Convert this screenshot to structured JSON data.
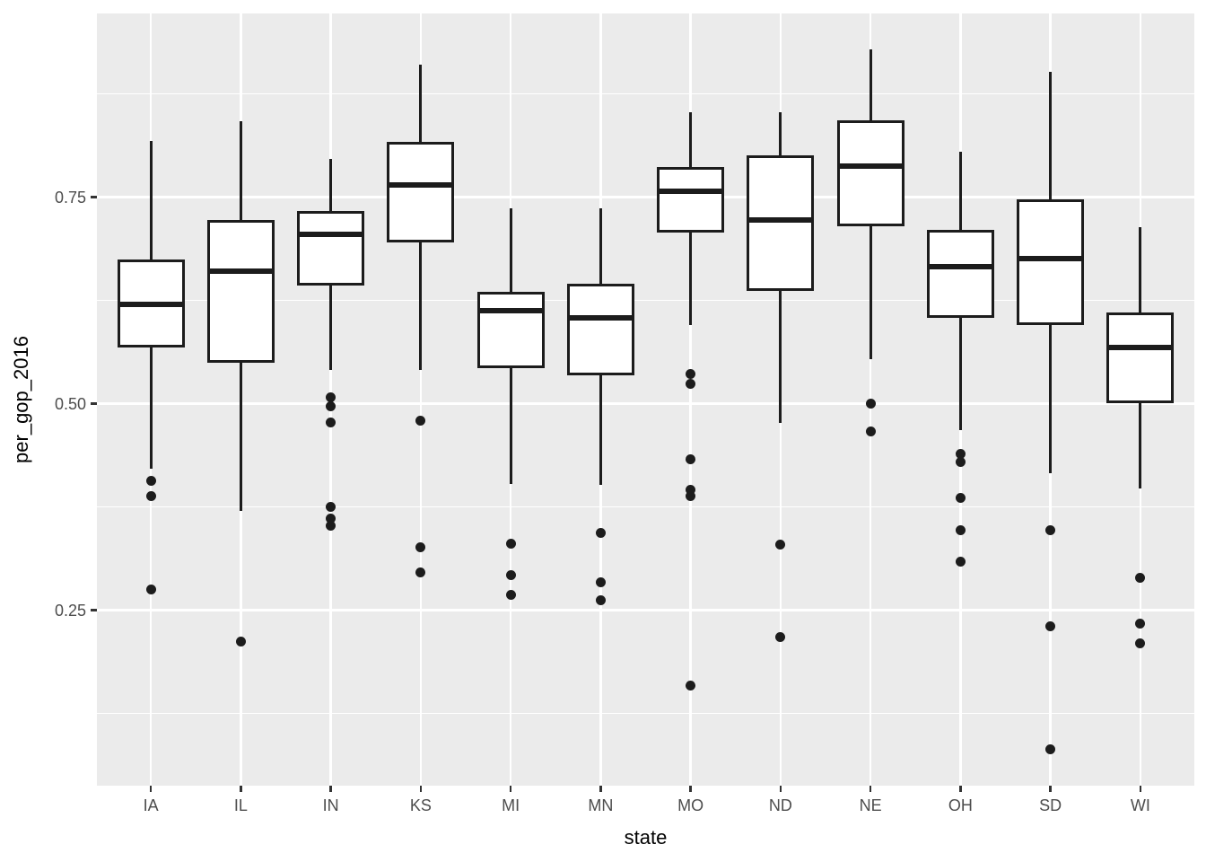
{
  "chart_data": {
    "type": "boxplot",
    "title": "",
    "xlabel": "state",
    "ylabel": "per_gop_2016",
    "legend": "none",
    "grid": "on",
    "panel_background": "#EBEBEB",
    "gridline_color": "#FFFFFF",
    "box_fill": "#FFFFFF",
    "stroke_color": "#1C1C1C",
    "tick_label_color": "#4D4D4D",
    "ylim": [
      0.0375,
      0.9725
    ],
    "y_major_ticks": [
      0.25,
      0.5,
      0.75
    ],
    "y_tick_labels": [
      "0.25",
      "0.50",
      "0.75"
    ],
    "y_minor_ticks": [
      0.125,
      0.375,
      0.625,
      0.875
    ],
    "categories": [
      "IA",
      "IL",
      "IN",
      "KS",
      "MI",
      "MN",
      "MO",
      "ND",
      "NE",
      "OH",
      "SD",
      "WI"
    ],
    "boxes": [
      {
        "state": "IA",
        "whisker_low": 0.421,
        "q1": 0.568,
        "median": 0.62,
        "q3": 0.675,
        "whisker_high": 0.818,
        "outliers": [
          0.407,
          0.388,
          0.275
        ]
      },
      {
        "state": "IL",
        "whisker_low": 0.37,
        "q1": 0.55,
        "median": 0.66,
        "q3": 0.722,
        "whisker_high": 0.842,
        "outliers": [
          0.212
        ]
      },
      {
        "state": "IN",
        "whisker_low": 0.541,
        "q1": 0.643,
        "median": 0.705,
        "q3": 0.733,
        "whisker_high": 0.796,
        "outliers": [
          0.508,
          0.497,
          0.477,
          0.375,
          0.361,
          0.352
        ]
      },
      {
        "state": "KS",
        "whisker_low": 0.541,
        "q1": 0.695,
        "median": 0.765,
        "q3": 0.817,
        "whisker_high": 0.911,
        "outliers": [
          0.479,
          0.326,
          0.296
        ]
      },
      {
        "state": "MI",
        "whisker_low": 0.403,
        "q1": 0.543,
        "median": 0.613,
        "q3": 0.635,
        "whisker_high": 0.737,
        "outliers": [
          0.33,
          0.292,
          0.268
        ]
      },
      {
        "state": "MN",
        "whisker_low": 0.402,
        "q1": 0.534,
        "median": 0.604,
        "q3": 0.645,
        "whisker_high": 0.737,
        "outliers": [
          0.344,
          0.284,
          0.262
        ]
      },
      {
        "state": "MO",
        "whisker_low": 0.595,
        "q1": 0.707,
        "median": 0.757,
        "q3": 0.787,
        "whisker_high": 0.853,
        "outliers": [
          0.536,
          0.524,
          0.433,
          0.396,
          0.388,
          0.159
        ]
      },
      {
        "state": "ND",
        "whisker_low": 0.477,
        "q1": 0.637,
        "median": 0.722,
        "q3": 0.801,
        "whisker_high": 0.853,
        "outliers": [
          0.329,
          0.217
        ]
      },
      {
        "state": "NE",
        "whisker_low": 0.554,
        "q1": 0.715,
        "median": 0.788,
        "q3": 0.843,
        "whisker_high": 0.929,
        "outliers": [
          0.5,
          0.466
        ]
      },
      {
        "state": "OH",
        "whisker_low": 0.468,
        "q1": 0.604,
        "median": 0.666,
        "q3": 0.711,
        "whisker_high": 0.805,
        "outliers": [
          0.439,
          0.429,
          0.386,
          0.347,
          0.309
        ]
      },
      {
        "state": "SD",
        "whisker_low": 0.416,
        "q1": 0.595,
        "median": 0.676,
        "q3": 0.747,
        "whisker_high": 0.902,
        "outliers": [
          0.347,
          0.23,
          0.082
        ]
      },
      {
        "state": "WI",
        "whisker_low": 0.397,
        "q1": 0.501,
        "median": 0.568,
        "q3": 0.61,
        "whisker_high": 0.714,
        "outliers": [
          0.289,
          0.234,
          0.21
        ]
      }
    ]
  },
  "layout_note": "ggplot2-style grouped boxplot of per_gop_2016 by state"
}
